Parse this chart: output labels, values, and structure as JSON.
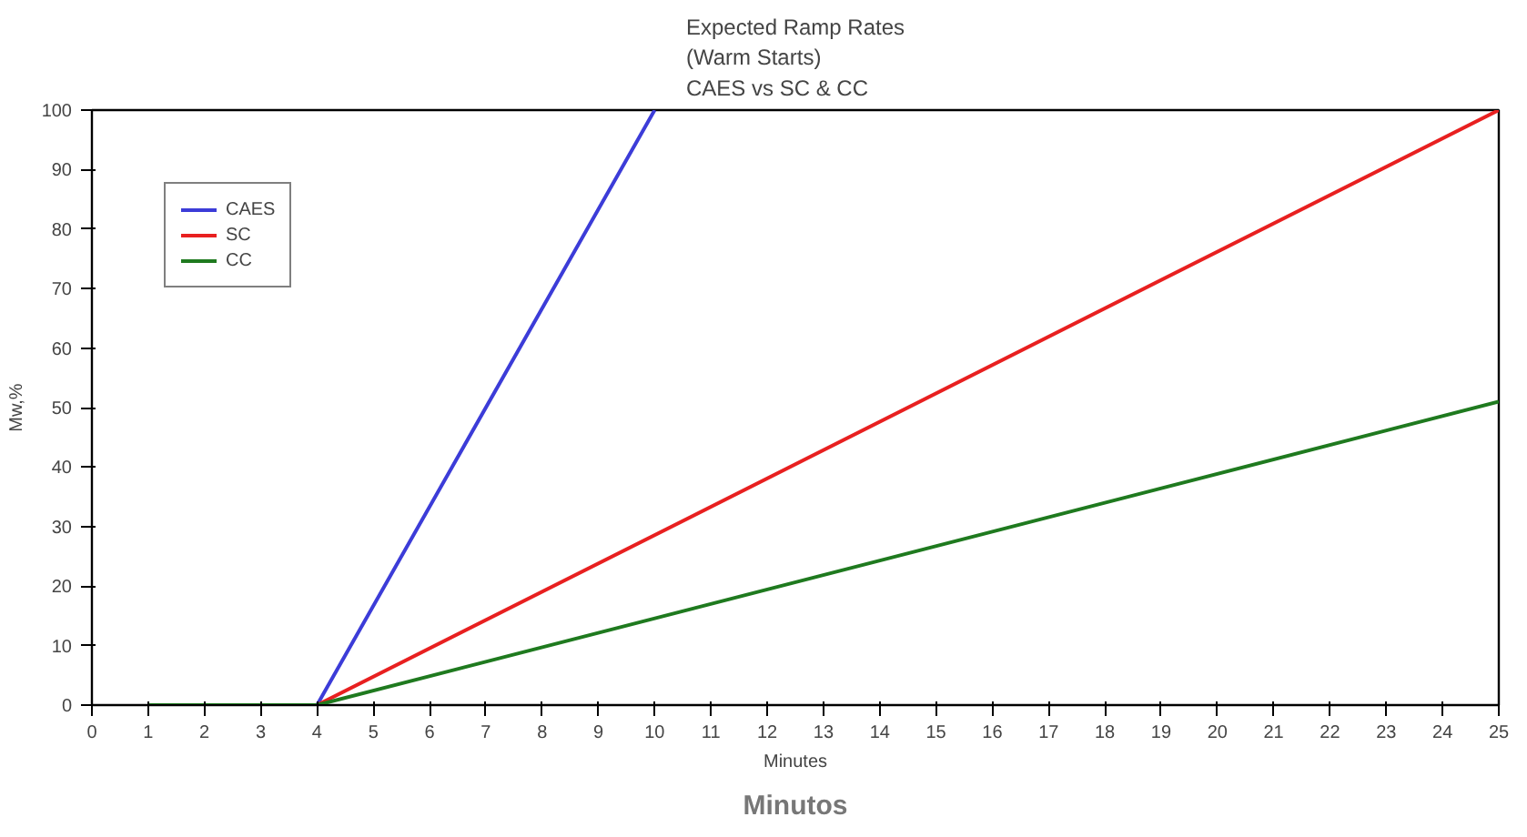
{
  "chart_data": {
    "type": "line",
    "title": "Expected Ramp Rates\n(Warm Starts)\nCAES vs SC & CC",
    "xlabel": "Minutes",
    "ylabel": "Mw,%",
    "annotations": [
      "Minutos"
    ],
    "xlim": [
      0,
      25
    ],
    "ylim": [
      0,
      100
    ],
    "xticks": [
      0,
      1,
      2,
      3,
      4,
      5,
      6,
      7,
      8,
      9,
      10,
      11,
      12,
      13,
      14,
      15,
      16,
      17,
      18,
      19,
      20,
      21,
      22,
      23,
      24,
      25
    ],
    "yticks": [
      0,
      10,
      20,
      30,
      40,
      50,
      60,
      70,
      80,
      90,
      100
    ],
    "grid": false,
    "legend": "top left",
    "marker": "none",
    "line_style": "solid",
    "series": [
      {
        "name": "CAES",
        "color": "#3c3cd8",
        "x": [
          1,
          4,
          10
        ],
        "values": [
          0,
          0,
          100
        ]
      },
      {
        "name": "SC",
        "color": "#e82020",
        "x": [
          1,
          4,
          25
        ],
        "values": [
          0,
          0,
          100
        ]
      },
      {
        "name": "CC",
        "color": "#1f7a1f",
        "x": [
          1,
          4,
          25
        ],
        "values": [
          0,
          0,
          51
        ]
      }
    ]
  }
}
